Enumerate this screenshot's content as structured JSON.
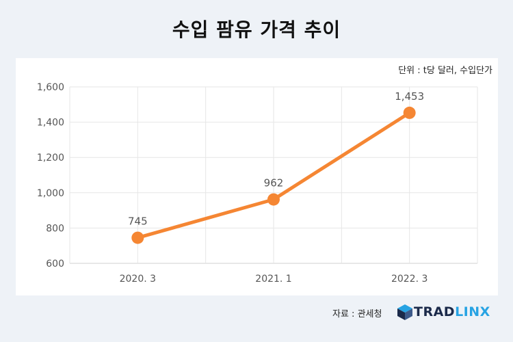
{
  "title": "수입 팜유 가격 추이",
  "unit_note": "단위 : t당 달러, 수입단가",
  "source": "자료 : 관세청",
  "brand": {
    "part1": "TRAD",
    "part2": "LINX"
  },
  "colors": {
    "line": "#f58633",
    "grid": "#e6e6e6",
    "axis_text": "#555555"
  },
  "chart_data": {
    "type": "line",
    "categories": [
      "2020. 3",
      "2021. 1",
      "2022. 3"
    ],
    "values": [
      745,
      962,
      1453
    ],
    "value_labels": [
      "745",
      "962",
      "1,453"
    ],
    "yticks": [
      "600",
      "800",
      "1,000",
      "1,200",
      "1,400",
      "1,600"
    ],
    "ylim": [
      600,
      1600
    ],
    "grid": true
  }
}
